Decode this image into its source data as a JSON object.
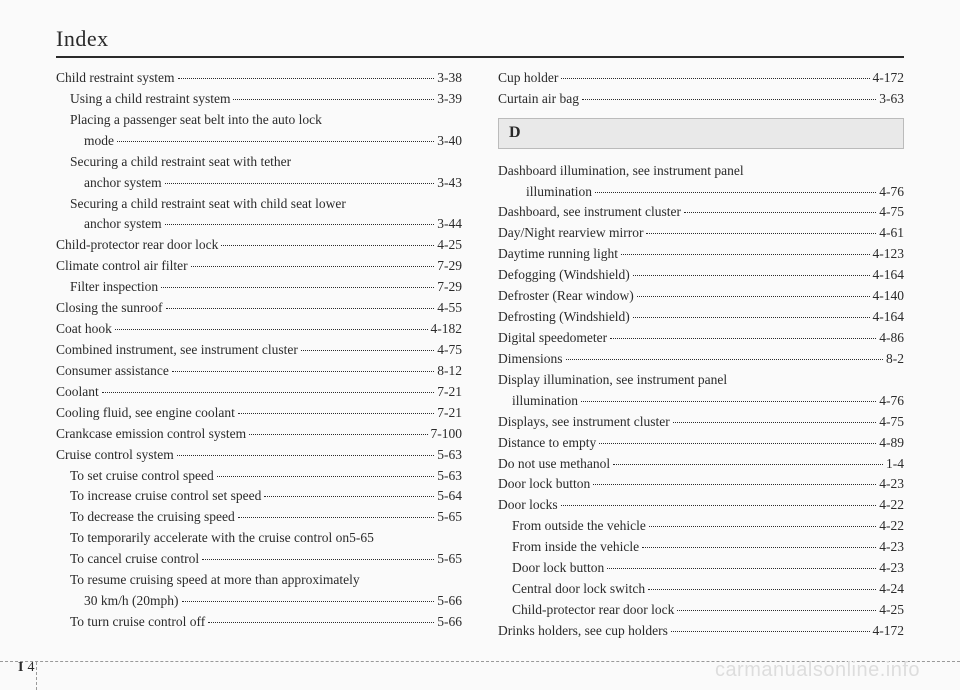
{
  "header": {
    "title": "Index"
  },
  "sectionBadge": "D",
  "footer": {
    "section": "I",
    "page": "4"
  },
  "watermark": "carmanualsonline.info",
  "left": [
    {
      "label": "Child restraint system",
      "page": "3-38",
      "indent": 0
    },
    {
      "label": "Using a child restraint system",
      "page": "3-39",
      "indent": 1
    },
    {
      "label": "Placing a passenger seat belt into the auto lock",
      "page": "",
      "indent": 1,
      "cont": true
    },
    {
      "label": "mode",
      "page": "3-40",
      "indent": 2
    },
    {
      "label": "Securing a child restraint seat with tether",
      "page": "",
      "indent": 1,
      "cont": true
    },
    {
      "label": "anchor system",
      "page": "3-43",
      "indent": 2
    },
    {
      "label": "Securing a child restraint seat with child seat lower",
      "page": "",
      "indent": 1,
      "cont": true
    },
    {
      "label": "anchor system",
      "page": "3-44",
      "indent": 2
    },
    {
      "label": "Child-protector rear door lock",
      "page": "4-25",
      "indent": 0
    },
    {
      "label": "Climate control air filter",
      "page": "7-29",
      "indent": 0
    },
    {
      "label": "Filter inspection",
      "page": "7-29",
      "indent": 1
    },
    {
      "label": "Closing the sunroof",
      "page": "4-55",
      "indent": 0
    },
    {
      "label": "Coat hook",
      "page": "4-182",
      "indent": 0
    },
    {
      "label": "Combined instrument, see instrument cluster",
      "page": "4-75",
      "indent": 0
    },
    {
      "label": "Consumer assistance",
      "page": "8-12",
      "indent": 0
    },
    {
      "label": "Coolant",
      "page": "7-21",
      "indent": 0
    },
    {
      "label": "Cooling fluid, see engine coolant",
      "page": "7-21",
      "indent": 0
    },
    {
      "label": "Crankcase emission control system",
      "page": "7-100",
      "indent": 0
    },
    {
      "label": "Cruise control system",
      "page": "5-63",
      "indent": 0
    },
    {
      "label": "To set cruise control speed",
      "page": "5-63",
      "indent": 1
    },
    {
      "label": "To increase cruise control set speed",
      "page": "5-64",
      "indent": 1
    },
    {
      "label": "To decrease the cruising speed",
      "page": "5-65",
      "indent": 1
    },
    {
      "label": "To temporarily accelerate with the cruise control on",
      "page": "5-65",
      "indent": 1,
      "nodots": true
    },
    {
      "label": "To cancel cruise control",
      "page": "5-65",
      "indent": 1
    },
    {
      "label": "To resume cruising speed at more than approximately",
      "page": "",
      "indent": 1,
      "cont": true
    },
    {
      "label": "30 km/h (20mph)",
      "page": "5-66",
      "indent": 2
    },
    {
      "label": "To turn cruise control off",
      "page": "5-66",
      "indent": 1
    }
  ],
  "rightTop": [
    {
      "label": "Cup holder",
      "page": "4-172",
      "indent": 0
    },
    {
      "label": "Curtain air bag",
      "page": "3-63",
      "indent": 0
    }
  ],
  "rightBottom": [
    {
      "label": "Dashboard illumination, see instrument panel",
      "page": "",
      "indent": 0,
      "cont": true
    },
    {
      "label": "illumination",
      "page": "4-76",
      "indent": 2
    },
    {
      "label": "Dashboard, see instrument cluster",
      "page": "4-75",
      "indent": 0
    },
    {
      "label": "Day/Night rearview mirror",
      "page": "4-61",
      "indent": 0
    },
    {
      "label": "Daytime running light",
      "page": "4-123",
      "indent": 0
    },
    {
      "label": "Defogging (Windshield)",
      "page": "4-164",
      "indent": 0
    },
    {
      "label": "Defroster (Rear window)",
      "page": "4-140",
      "indent": 0
    },
    {
      "label": "Defrosting (Windshield)",
      "page": "4-164",
      "indent": 0
    },
    {
      "label": "Digital speedometer",
      "page": "4-86",
      "indent": 0
    },
    {
      "label": "Dimensions",
      "page": "8-2",
      "indent": 0
    },
    {
      "label": "Display illumination, see instrument panel",
      "page": "",
      "indent": 0,
      "cont": true
    },
    {
      "label": "illumination",
      "page": "4-76",
      "indent": 1
    },
    {
      "label": "Displays, see instrument cluster",
      "page": "4-75",
      "indent": 0
    },
    {
      "label": "Distance to empty",
      "page": "4-89",
      "indent": 0
    },
    {
      "label": "Do not use methanol",
      "page": "1-4",
      "indent": 0
    },
    {
      "label": "Door lock button",
      "page": "4-23",
      "indent": 0
    },
    {
      "label": "Door locks",
      "page": "4-22",
      "indent": 0
    },
    {
      "label": "From outside the vehicle",
      "page": "4-22",
      "indent": 1
    },
    {
      "label": "From inside the vehicle",
      "page": "4-23",
      "indent": 1
    },
    {
      "label": "Door lock button",
      "page": "4-23",
      "indent": 1
    },
    {
      "label": "Central door lock switch",
      "page": "4-24",
      "indent": 1
    },
    {
      "label": "Child-protector rear door lock",
      "page": "4-25",
      "indent": 1
    },
    {
      "label": "Drinks holders, see cup holders",
      "page": "4-172",
      "indent": 0
    }
  ]
}
